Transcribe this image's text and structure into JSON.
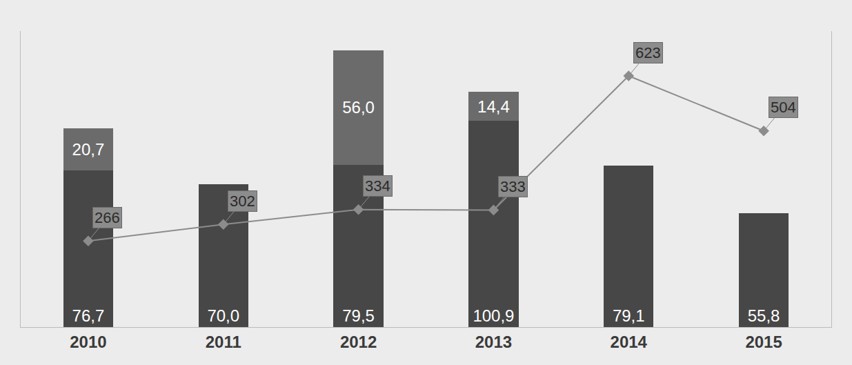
{
  "chart_data": {
    "type": "bar",
    "stacked": true,
    "data_labels": true,
    "tick_labels": "x",
    "grid": false,
    "categories": [
      "2010",
      "2011",
      "2012",
      "2013",
      "2014",
      "2015"
    ],
    "ylim": [
      0,
      145
    ],
    "y2lim": [
      80,
      720
    ],
    "series": [
      {
        "type": "bar",
        "color": "#474747",
        "values": [
          76.7,
          70.0,
          79.5,
          100.9,
          79.1,
          55.8
        ],
        "value_labels": [
          "76,7",
          "70,0",
          "79,5",
          "100,9",
          "79,1",
          "55,8"
        ]
      },
      {
        "type": "bar",
        "color": "#6b6b6b",
        "values": [
          20.7,
          null,
          56.0,
          14.4,
          null,
          null
        ],
        "value_labels": [
          "20,7",
          null,
          "56,0",
          "14,4",
          null,
          null
        ]
      },
      {
        "type": "line",
        "axis": "y2",
        "color": "#8c8c8c",
        "marker": "diamond",
        "values": [
          266,
          302,
          334,
          333,
          623,
          504
        ]
      }
    ]
  }
}
